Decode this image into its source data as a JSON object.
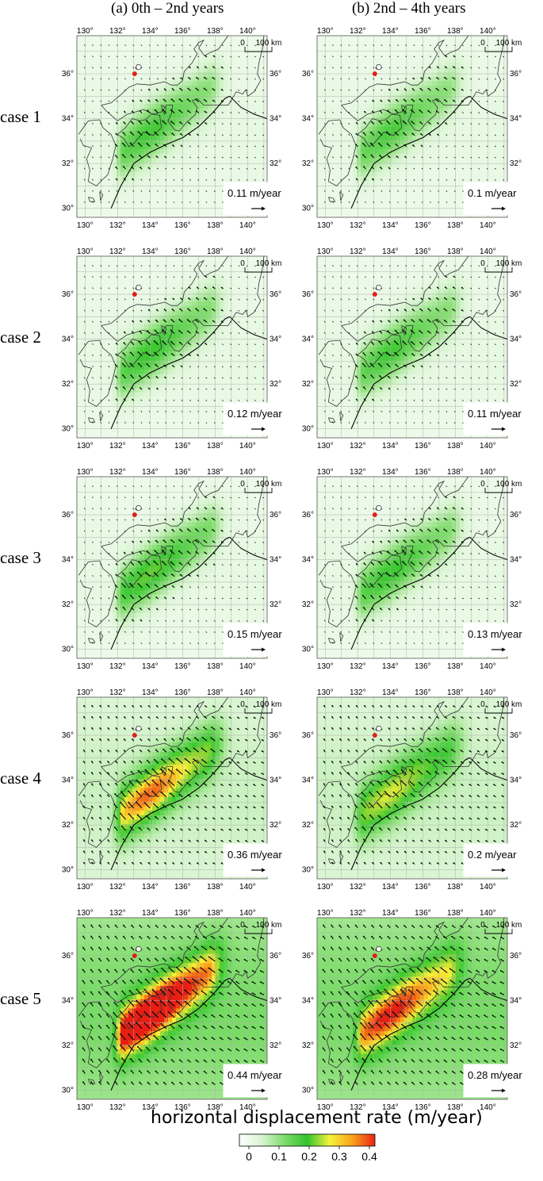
{
  "column_titles": [
    "(a) 0th – 2nd years",
    "(b) 2nd – 4th years"
  ],
  "lon_ticks": [
    "130°",
    "132°",
    "134°",
    "136°",
    "138°",
    "140°"
  ],
  "lat_ticks": [
    "36°",
    "34°",
    "32°",
    "30°"
  ],
  "scale_bar": {
    "zero": "0",
    "label": "100 km"
  },
  "cases": [
    {
      "label": "case 1",
      "panels": [
        {
          "scale": "0.11 m/year",
          "peak": 0.16
        },
        {
          "scale": "0.1 m/year",
          "peak": 0.15
        }
      ]
    },
    {
      "label": "case 2",
      "panels": [
        {
          "scale": "0.12 m/year",
          "peak": 0.17
        },
        {
          "scale": "0.11 m/year",
          "peak": 0.16
        }
      ]
    },
    {
      "label": "case 3",
      "panels": [
        {
          "scale": "0.15 m/year",
          "peak": 0.19
        },
        {
          "scale": "0.13 m/year",
          "peak": 0.17
        }
      ]
    },
    {
      "label": "case 4",
      "panels": [
        {
          "scale": "0.36 m/year",
          "peak": 0.32
        },
        {
          "scale": "0.2 m/year",
          "peak": 0.22
        }
      ]
    },
    {
      "label": "case 5",
      "panels": [
        {
          "scale": "0.44 m/year",
          "peak": 0.43
        },
        {
          "scale": "0.28 m/year",
          "peak": 0.3
        }
      ]
    }
  ],
  "legend": {
    "title": "horizontal displacement rate (m/year)",
    "ticks": [
      "0",
      "0.1",
      "0.2",
      "0.3",
      "0.4"
    ],
    "colors": [
      "#ffffff",
      "#d8f5d0",
      "#7ddc6c",
      "#33c42c",
      "#f6f23a",
      "#f9a11c",
      "#ec2414"
    ]
  },
  "colors": {
    "land_line": "#333333",
    "grid": "#b0b0b0",
    "trough": "#000000",
    "marker": "#e0201c"
  }
}
